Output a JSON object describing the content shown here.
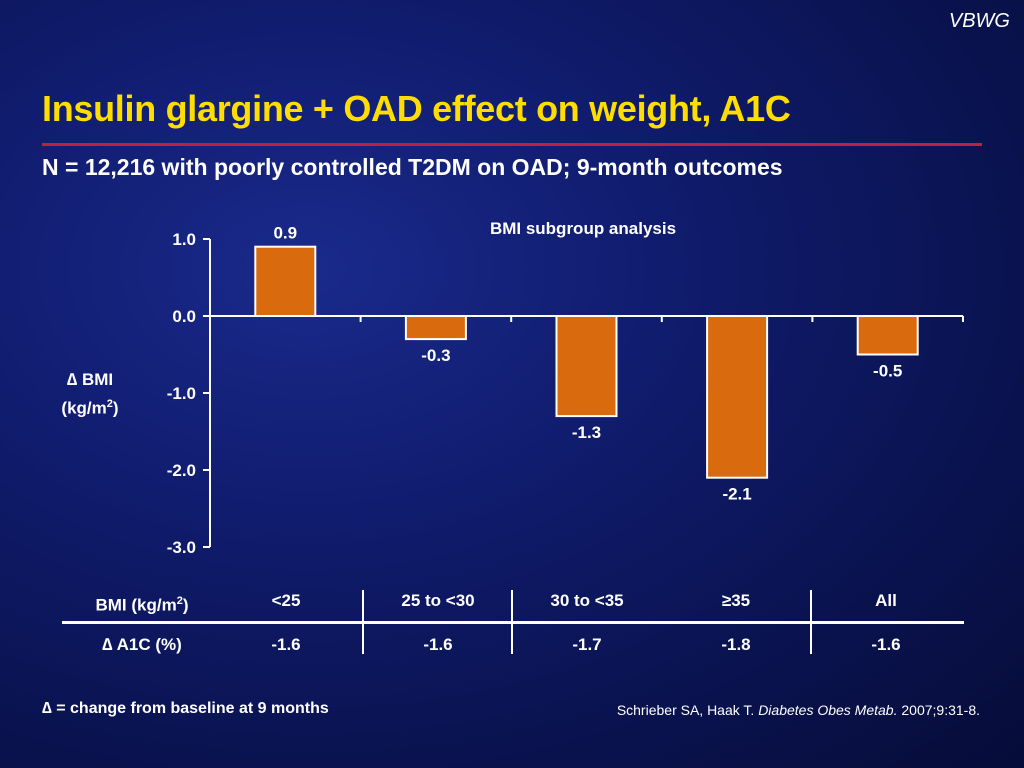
{
  "logo": "VBWG",
  "title": "Insulin glargine + OAD effect on weight, A1C",
  "subtitle": "N = 12,216 with poorly controlled T2DM on OAD; 9-month outcomes",
  "chart_data": {
    "type": "bar",
    "title": "BMI subgroup analysis",
    "ylabel_line1": "∆ BMI",
    "ylabel_line2": "(kg/m",
    "ylabel_sup": "2",
    "ylabel_line2_end": ")",
    "categories": [
      "<25",
      "25 to <30",
      "30 to <35",
      "≥35",
      "All"
    ],
    "values": [
      0.9,
      -0.3,
      -1.3,
      -2.1,
      -0.5
    ],
    "value_labels": [
      "0.9",
      "-0.3",
      "-1.3",
      "-2.1",
      "-0.5"
    ],
    "ylim": [
      -3.0,
      1.0
    ],
    "yticks": [
      1.0,
      0.0,
      -1.0,
      -2.0,
      -3.0
    ],
    "ytick_labels": [
      "1.0",
      "0.0",
      "-1.0",
      "-2.0",
      "-3.0"
    ],
    "bar_color": "#d96b0e",
    "bar_edge_color": "#ffffff",
    "grid": false
  },
  "table": {
    "row1_header": "BMI (kg/m",
    "row1_header_sup": "2",
    "row1_header_end": ")",
    "row1_values": [
      "<25",
      "25 to <30",
      "30 to <35",
      "≥35",
      "All"
    ],
    "row2_header": "∆ A1C (%)",
    "row2_values": [
      "-1.6",
      "-1.6",
      "-1.7",
      "-1.8",
      "-1.6"
    ]
  },
  "footnote": "∆ = change from baseline at 9 months",
  "citation": {
    "authors": "Schrieber SA, Haak T. ",
    "journal": "Diabetes Obes Metab.",
    "details": " 2007;9:31-8."
  },
  "colors": {
    "title": "#ffdd00",
    "rule": "#c02040",
    "text": "#ffffff"
  }
}
